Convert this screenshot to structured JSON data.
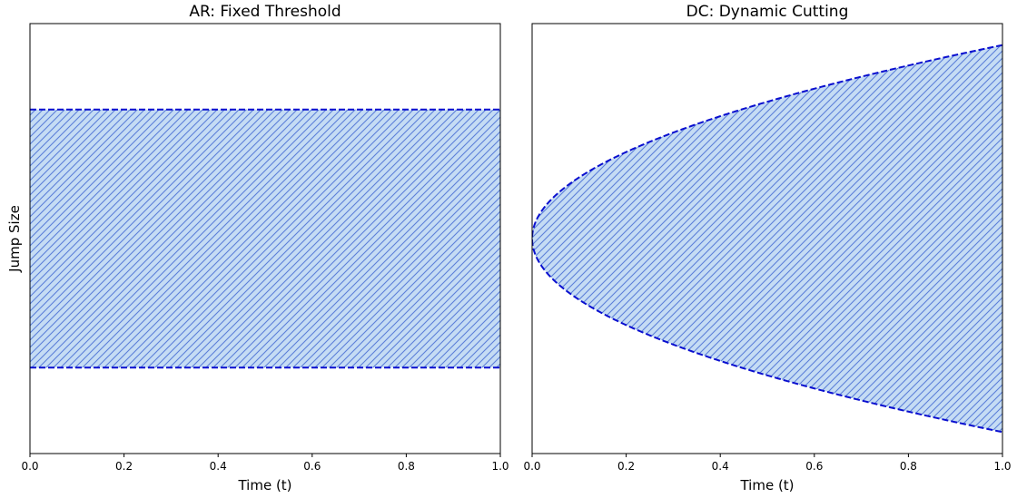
{
  "chart_data": [
    {
      "type": "area",
      "title": "AR: Fixed Threshold",
      "xlabel": "Time (t)",
      "ylabel": "Jump Size",
      "xlim": [
        0.0,
        1.0
      ],
      "ylim": [
        -2.5,
        2.5
      ],
      "x_ticks": [
        "0.0",
        "0.2",
        "0.4",
        "0.6",
        "0.8",
        "1.0"
      ],
      "y_ticks_visible": false,
      "grid": false,
      "region": {
        "shape": "band",
        "lower": -1.5,
        "upper": 1.5,
        "fill_color": "#c5dcf4",
        "hatch_color": "#5b7fd9",
        "edge_color": "#0a0fcf",
        "edge_style": "dashed"
      }
    },
    {
      "type": "area",
      "title": "DC: Dynamic Cutting",
      "xlabel": "Time (t)",
      "ylabel": "",
      "xlim": [
        0.0,
        1.0
      ],
      "ylim": [
        -2.5,
        2.5
      ],
      "x_ticks": [
        "0.0",
        "0.2",
        "0.4",
        "0.6",
        "0.8",
        "1.0"
      ],
      "y_ticks_visible": false,
      "grid": false,
      "region": {
        "shape": "envelope",
        "boundary": "y = ±2.25·√t",
        "x": [
          0.0,
          0.01,
          0.05,
          0.1,
          0.2,
          0.3,
          0.4,
          0.5,
          0.6,
          0.7,
          0.8,
          0.9,
          1.0
        ],
        "upper": [
          0.0,
          0.225,
          0.503,
          0.712,
          1.006,
          1.232,
          1.423,
          1.591,
          1.743,
          1.883,
          2.012,
          2.135,
          2.25
        ],
        "lower": [
          0.0,
          -0.225,
          -0.503,
          -0.712,
          -1.006,
          -1.232,
          -1.423,
          -1.591,
          -1.743,
          -1.883,
          -2.012,
          -2.135,
          -2.25
        ],
        "fill_color": "#c5dcf4",
        "hatch_color": "#5b7fd9",
        "edge_color": "#0a0fcf",
        "edge_style": "dashed"
      }
    }
  ]
}
